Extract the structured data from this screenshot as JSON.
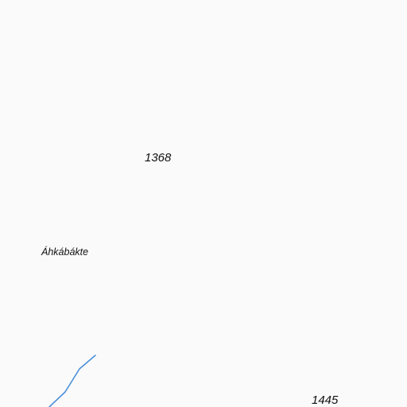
{
  "map": {
    "background": "#fafafa",
    "water_color": "#4a90d9",
    "elevation_labels": [
      {
        "value": "1368"
      },
      {
        "value": "1445"
      }
    ],
    "place_labels": [
      {
        "name": "Áhkábákte"
      }
    ],
    "features": [
      {
        "type": "stream",
        "color": "#4a90d9"
      }
    ]
  }
}
